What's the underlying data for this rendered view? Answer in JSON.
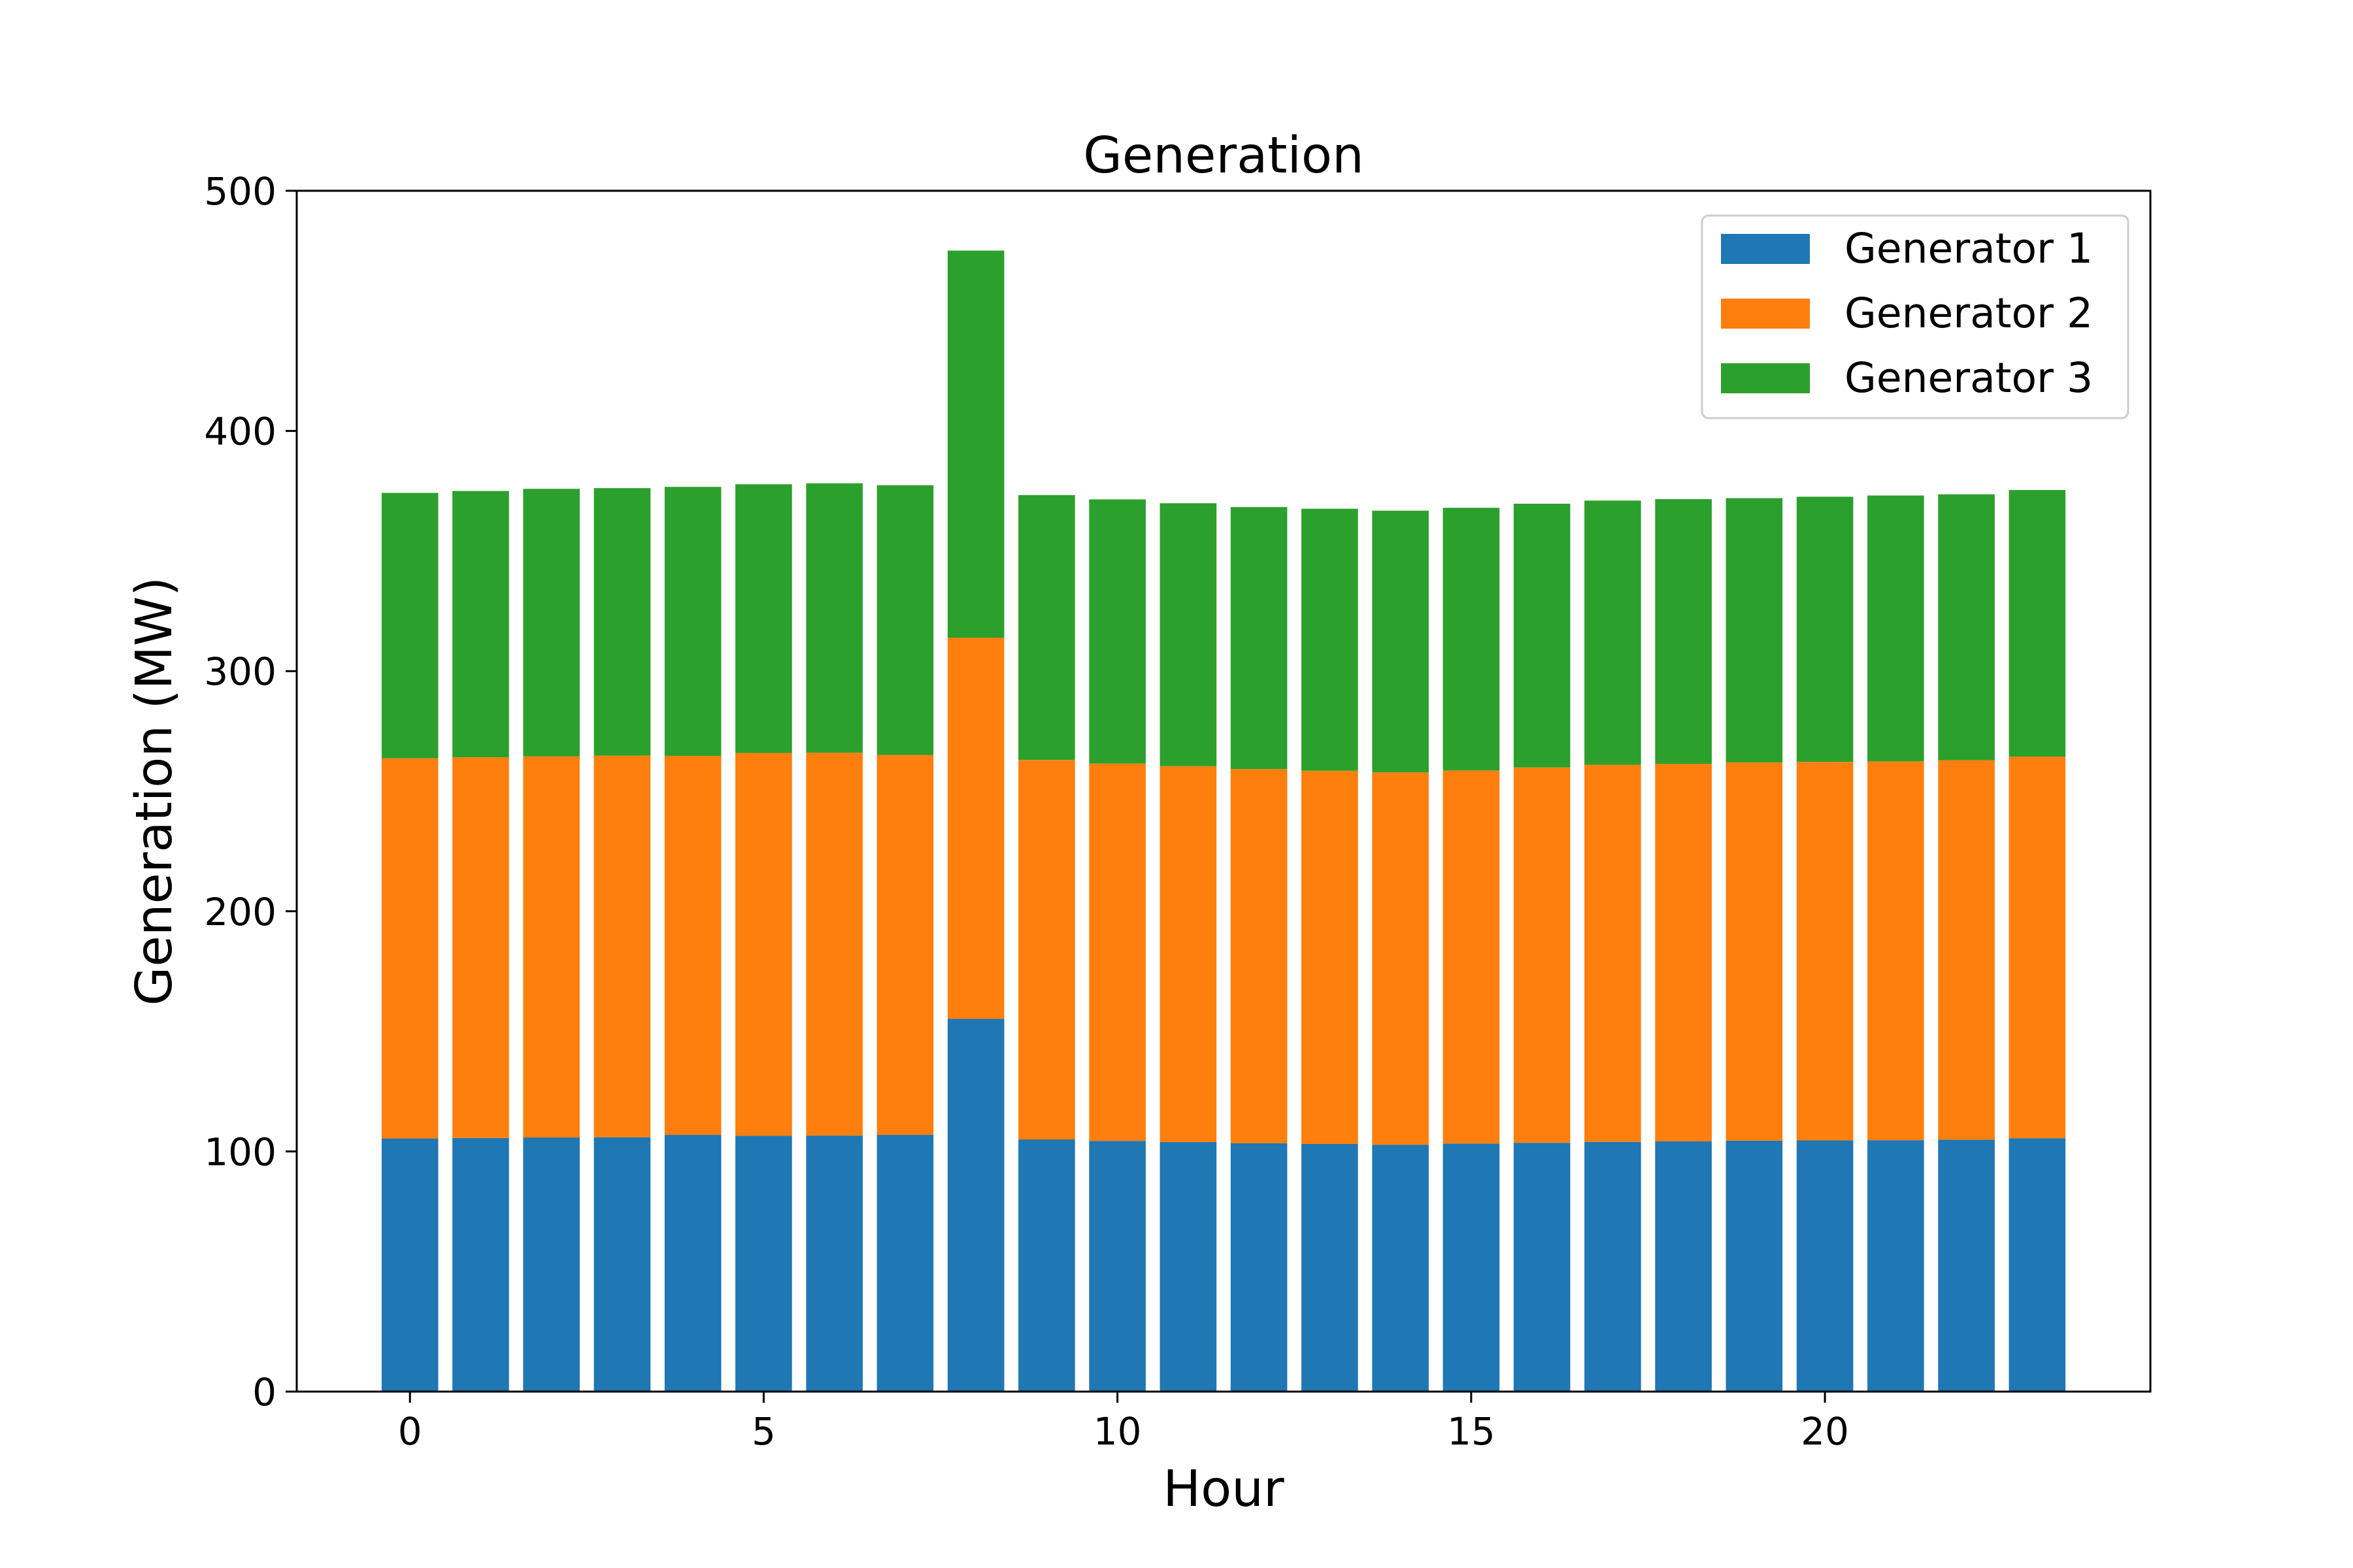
{
  "chart_data": {
    "type": "bar",
    "stacked": true,
    "title": "Generation",
    "xlabel": "Hour",
    "ylabel": "Generation (MW)",
    "x": [
      0,
      1,
      2,
      3,
      4,
      5,
      6,
      7,
      8,
      9,
      10,
      11,
      12,
      13,
      14,
      15,
      16,
      17,
      18,
      19,
      20,
      21,
      22,
      23
    ],
    "xlim": [
      -1.6,
      24.6
    ],
    "ylim": [
      0,
      500
    ],
    "xticks": [
      0,
      5,
      10,
      15,
      20
    ],
    "yticks": [
      0,
      100,
      200,
      300,
      400,
      500
    ],
    "grid": false,
    "legend_position": "top-right",
    "series": [
      {
        "name": "Generator 1",
        "color": "#1f77b4",
        "values": [
          105.4,
          105.6,
          105.8,
          105.9,
          106.9,
          106.5,
          106.6,
          106.9,
          155.2,
          105.0,
          104.4,
          103.9,
          103.4,
          103.1,
          102.8,
          103.3,
          103.6,
          104.0,
          104.2,
          104.5,
          104.6,
          104.7,
          104.9,
          105.5
        ]
      },
      {
        "name": "Generator 2",
        "color": "#ff7f0e",
        "values": [
          158.3,
          158.5,
          158.7,
          158.9,
          157.8,
          159.4,
          159.4,
          158.2,
          158.7,
          158.0,
          157.1,
          156.5,
          155.8,
          155.4,
          155.0,
          155.3,
          156.3,
          157.0,
          157.2,
          157.5,
          157.6,
          157.7,
          158.0,
          158.9
        ]
      },
      {
        "name": "Generator 3",
        "color": "#2ca02c",
        "values": [
          110.5,
          110.9,
          111.4,
          111.4,
          112.0,
          111.9,
          112.2,
          112.3,
          161.2,
          110.3,
          110.0,
          109.5,
          109.1,
          109.1,
          109.0,
          109.4,
          109.8,
          110.0,
          110.2,
          110.0,
          110.4,
          110.7,
          110.7,
          111.0
        ]
      }
    ]
  }
}
